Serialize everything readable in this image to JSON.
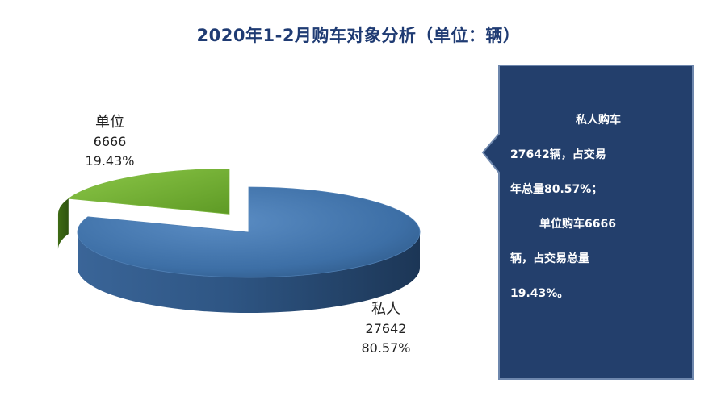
{
  "title": "2020年1-2月购车对象分析（单位：辆）",
  "colors": {
    "title": "#1f3b73",
    "private_slice": "#3d6fa6",
    "unit_slice": "#76b335",
    "callout_bg": "#233f6c"
  },
  "chart_data": {
    "type": "pie",
    "style": "3d-exploded",
    "title": "2020年1-2月购车对象分析（单位：辆）",
    "slices": [
      {
        "label": "私人",
        "value": 27642,
        "percent": "80.57%"
      },
      {
        "label": "单位",
        "value": 6666,
        "percent": "19.43%"
      }
    ]
  },
  "callout": {
    "lines": [
      "私人购车",
      "27642辆，占交易",
      "年总量80.57%；",
      "单位购车6666",
      "辆，占交易总量",
      "19.43%。"
    ]
  }
}
